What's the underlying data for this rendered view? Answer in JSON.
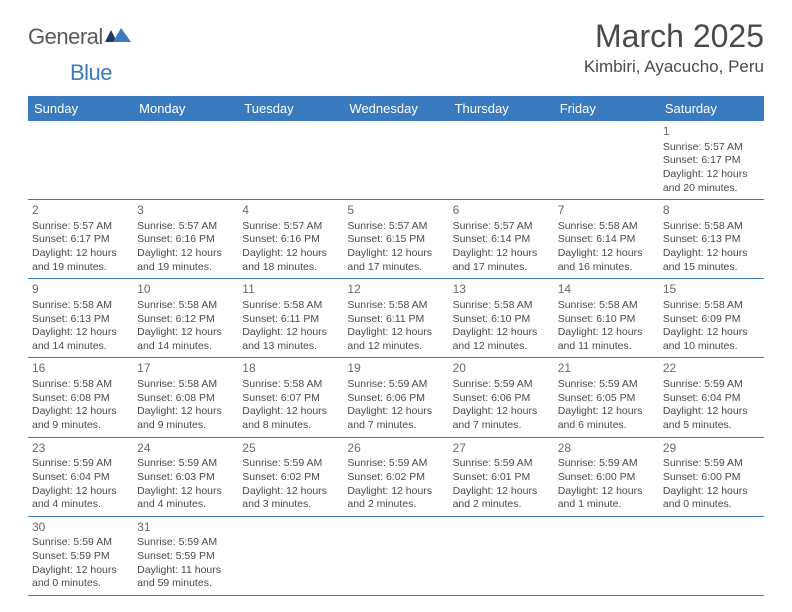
{
  "logo": {
    "word1": "General",
    "word2": "Blue"
  },
  "title": "March 2025",
  "location": "Kimbiri, Ayacucho, Peru",
  "colors": {
    "header_bg": "#3a7bbf",
    "header_text": "#ffffff",
    "grid_line": "#3a7bbf",
    "body_text": "#4a4a4a",
    "logo_blue": "#3a7bbf",
    "background": "#ffffff"
  },
  "typography": {
    "title_fontsize": 32,
    "location_fontsize": 17,
    "weekday_fontsize": 13,
    "cell_fontsize": 10.5,
    "daynum_fontsize": 12
  },
  "weekdays": [
    "Sunday",
    "Monday",
    "Tuesday",
    "Wednesday",
    "Thursday",
    "Friday",
    "Saturday"
  ],
  "weeks": [
    [
      null,
      null,
      null,
      null,
      null,
      null,
      {
        "n": "1",
        "sr": "Sunrise: 5:57 AM",
        "ss": "Sunset: 6:17 PM",
        "d1": "Daylight: 12 hours",
        "d2": "and 20 minutes."
      }
    ],
    [
      {
        "n": "2",
        "sr": "Sunrise: 5:57 AM",
        "ss": "Sunset: 6:17 PM",
        "d1": "Daylight: 12 hours",
        "d2": "and 19 minutes."
      },
      {
        "n": "3",
        "sr": "Sunrise: 5:57 AM",
        "ss": "Sunset: 6:16 PM",
        "d1": "Daylight: 12 hours",
        "d2": "and 19 minutes."
      },
      {
        "n": "4",
        "sr": "Sunrise: 5:57 AM",
        "ss": "Sunset: 6:16 PM",
        "d1": "Daylight: 12 hours",
        "d2": "and 18 minutes."
      },
      {
        "n": "5",
        "sr": "Sunrise: 5:57 AM",
        "ss": "Sunset: 6:15 PM",
        "d1": "Daylight: 12 hours",
        "d2": "and 17 minutes."
      },
      {
        "n": "6",
        "sr": "Sunrise: 5:57 AM",
        "ss": "Sunset: 6:14 PM",
        "d1": "Daylight: 12 hours",
        "d2": "and 17 minutes."
      },
      {
        "n": "7",
        "sr": "Sunrise: 5:58 AM",
        "ss": "Sunset: 6:14 PM",
        "d1": "Daylight: 12 hours",
        "d2": "and 16 minutes."
      },
      {
        "n": "8",
        "sr": "Sunrise: 5:58 AM",
        "ss": "Sunset: 6:13 PM",
        "d1": "Daylight: 12 hours",
        "d2": "and 15 minutes."
      }
    ],
    [
      {
        "n": "9",
        "sr": "Sunrise: 5:58 AM",
        "ss": "Sunset: 6:13 PM",
        "d1": "Daylight: 12 hours",
        "d2": "and 14 minutes."
      },
      {
        "n": "10",
        "sr": "Sunrise: 5:58 AM",
        "ss": "Sunset: 6:12 PM",
        "d1": "Daylight: 12 hours",
        "d2": "and 14 minutes."
      },
      {
        "n": "11",
        "sr": "Sunrise: 5:58 AM",
        "ss": "Sunset: 6:11 PM",
        "d1": "Daylight: 12 hours",
        "d2": "and 13 minutes."
      },
      {
        "n": "12",
        "sr": "Sunrise: 5:58 AM",
        "ss": "Sunset: 6:11 PM",
        "d1": "Daylight: 12 hours",
        "d2": "and 12 minutes."
      },
      {
        "n": "13",
        "sr": "Sunrise: 5:58 AM",
        "ss": "Sunset: 6:10 PM",
        "d1": "Daylight: 12 hours",
        "d2": "and 12 minutes."
      },
      {
        "n": "14",
        "sr": "Sunrise: 5:58 AM",
        "ss": "Sunset: 6:10 PM",
        "d1": "Daylight: 12 hours",
        "d2": "and 11 minutes."
      },
      {
        "n": "15",
        "sr": "Sunrise: 5:58 AM",
        "ss": "Sunset: 6:09 PM",
        "d1": "Daylight: 12 hours",
        "d2": "and 10 minutes."
      }
    ],
    [
      {
        "n": "16",
        "sr": "Sunrise: 5:58 AM",
        "ss": "Sunset: 6:08 PM",
        "d1": "Daylight: 12 hours",
        "d2": "and 9 minutes."
      },
      {
        "n": "17",
        "sr": "Sunrise: 5:58 AM",
        "ss": "Sunset: 6:08 PM",
        "d1": "Daylight: 12 hours",
        "d2": "and 9 minutes."
      },
      {
        "n": "18",
        "sr": "Sunrise: 5:58 AM",
        "ss": "Sunset: 6:07 PM",
        "d1": "Daylight: 12 hours",
        "d2": "and 8 minutes."
      },
      {
        "n": "19",
        "sr": "Sunrise: 5:59 AM",
        "ss": "Sunset: 6:06 PM",
        "d1": "Daylight: 12 hours",
        "d2": "and 7 minutes."
      },
      {
        "n": "20",
        "sr": "Sunrise: 5:59 AM",
        "ss": "Sunset: 6:06 PM",
        "d1": "Daylight: 12 hours",
        "d2": "and 7 minutes."
      },
      {
        "n": "21",
        "sr": "Sunrise: 5:59 AM",
        "ss": "Sunset: 6:05 PM",
        "d1": "Daylight: 12 hours",
        "d2": "and 6 minutes."
      },
      {
        "n": "22",
        "sr": "Sunrise: 5:59 AM",
        "ss": "Sunset: 6:04 PM",
        "d1": "Daylight: 12 hours",
        "d2": "and 5 minutes."
      }
    ],
    [
      {
        "n": "23",
        "sr": "Sunrise: 5:59 AM",
        "ss": "Sunset: 6:04 PM",
        "d1": "Daylight: 12 hours",
        "d2": "and 4 minutes."
      },
      {
        "n": "24",
        "sr": "Sunrise: 5:59 AM",
        "ss": "Sunset: 6:03 PM",
        "d1": "Daylight: 12 hours",
        "d2": "and 4 minutes."
      },
      {
        "n": "25",
        "sr": "Sunrise: 5:59 AM",
        "ss": "Sunset: 6:02 PM",
        "d1": "Daylight: 12 hours",
        "d2": "and 3 minutes."
      },
      {
        "n": "26",
        "sr": "Sunrise: 5:59 AM",
        "ss": "Sunset: 6:02 PM",
        "d1": "Daylight: 12 hours",
        "d2": "and 2 minutes."
      },
      {
        "n": "27",
        "sr": "Sunrise: 5:59 AM",
        "ss": "Sunset: 6:01 PM",
        "d1": "Daylight: 12 hours",
        "d2": "and 2 minutes."
      },
      {
        "n": "28",
        "sr": "Sunrise: 5:59 AM",
        "ss": "Sunset: 6:00 PM",
        "d1": "Daylight: 12 hours",
        "d2": "and 1 minute."
      },
      {
        "n": "29",
        "sr": "Sunrise: 5:59 AM",
        "ss": "Sunset: 6:00 PM",
        "d1": "Daylight: 12 hours",
        "d2": "and 0 minutes."
      }
    ],
    [
      {
        "n": "30",
        "sr": "Sunrise: 5:59 AM",
        "ss": "Sunset: 5:59 PM",
        "d1": "Daylight: 12 hours",
        "d2": "and 0 minutes."
      },
      {
        "n": "31",
        "sr": "Sunrise: 5:59 AM",
        "ss": "Sunset: 5:59 PM",
        "d1": "Daylight: 11 hours",
        "d2": "and 59 minutes."
      },
      null,
      null,
      null,
      null,
      null
    ]
  ]
}
